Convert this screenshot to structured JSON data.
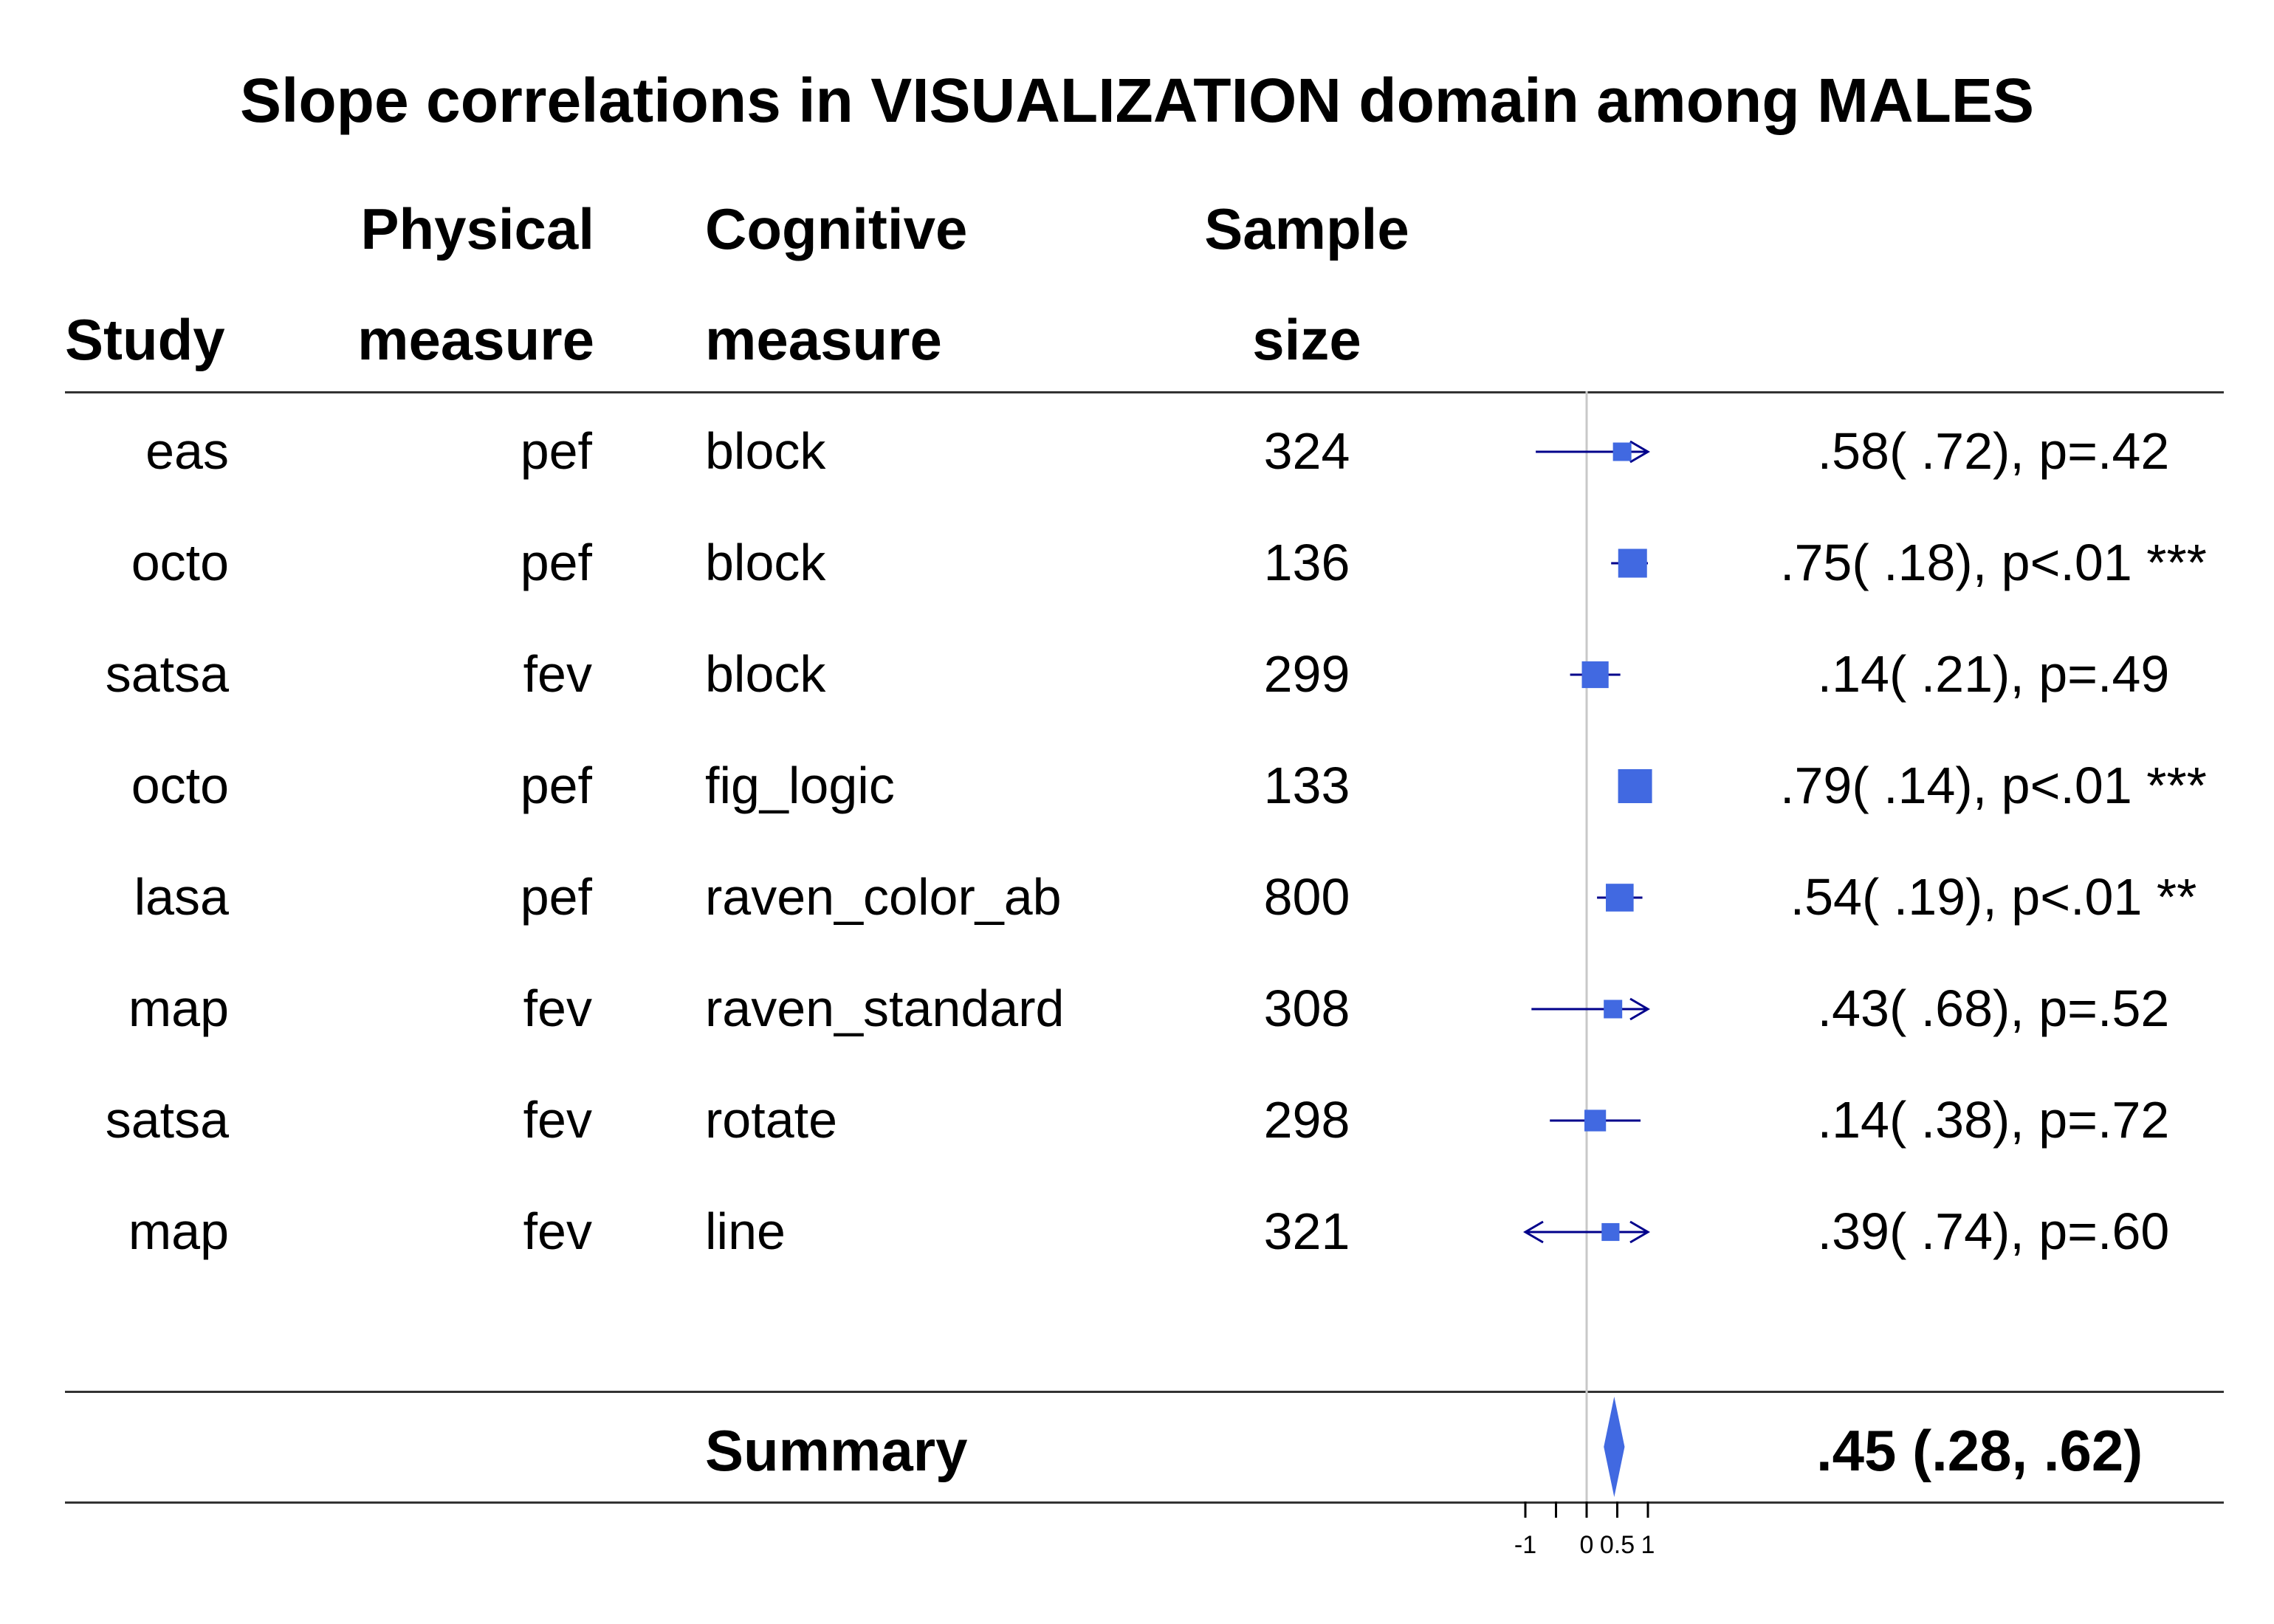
{
  "title": "Slope correlations in VISUALIZATION domain among MALES",
  "headers": {
    "study": "Study",
    "physical_1": "Physical",
    "physical_2": "measure",
    "cognitive_1": "Cognitive",
    "cognitive_2": "measure",
    "sample_1": "Sample",
    "sample_2": "size"
  },
  "summary": {
    "label": "Summary",
    "value": ".45 (.28, .62)"
  },
  "colors": {
    "marker": "#4169E1",
    "ci_line": "#00008B",
    "ref_line": "#C8C8C8",
    "rule": "#333333"
  },
  "chart_data": {
    "type": "forest",
    "x_axis": {
      "ticks": [
        -1,
        -0.5,
        0,
        0.5,
        1
      ],
      "tick_labels": [
        "-1",
        "",
        "0",
        "0.5",
        "1"
      ],
      "xlim": [
        -1,
        1
      ],
      "ref_line": 0
    },
    "rows": [
      {
        "study": "eas",
        "physical": "pef",
        "cognitive": "block",
        "n": "324",
        "est": 0.58,
        "lo": -0.83,
        "hi": 1.0,
        "arrow_hi": true,
        "arrow_lo": false,
        "weight": 0.25,
        "label": ".58( .72), p=.42"
      },
      {
        "study": "octo",
        "physical": "pef",
        "cognitive": "block",
        "n": "136",
        "est": 0.75,
        "lo": 0.4,
        "hi": 1.0,
        "arrow_hi": false,
        "arrow_lo": false,
        "weight": 0.75,
        "label": ".75( .18), p<.01 ***"
      },
      {
        "study": "satsa",
        "physical": "fev",
        "cognitive": "block",
        "n": "299",
        "est": 0.14,
        "lo": -0.27,
        "hi": 0.55,
        "arrow_hi": false,
        "arrow_lo": false,
        "weight": 0.65,
        "label": ".14( .21), p=.49"
      },
      {
        "study": "octo",
        "physical": "pef",
        "cognitive": "fig_logic",
        "n": "133",
        "est": 0.79,
        "lo": 0.52,
        "hi": 1.0,
        "arrow_hi": false,
        "arrow_lo": false,
        "weight": 1.0,
        "label": ".79( .14), p<.01 ***"
      },
      {
        "study": "lasa",
        "physical": "pef",
        "cognitive": "raven_color_ab",
        "n": "800",
        "est": 0.54,
        "lo": 0.17,
        "hi": 0.91,
        "arrow_hi": false,
        "arrow_lo": false,
        "weight": 0.7,
        "label": ".54( .19), p<.01 **"
      },
      {
        "study": "map",
        "physical": "fev",
        "cognitive": "raven_standard",
        "n": "308",
        "est": 0.43,
        "lo": -0.9,
        "hi": 1.0,
        "arrow_hi": true,
        "arrow_lo": false,
        "weight": 0.25,
        "label": ".43( .68), p=.52"
      },
      {
        "study": "satsa",
        "physical": "fev",
        "cognitive": "rotate",
        "n": "298",
        "est": 0.14,
        "lo": -0.6,
        "hi": 0.88,
        "arrow_hi": false,
        "arrow_lo": false,
        "weight": 0.4,
        "label": ".14( .38), p=.72"
      },
      {
        "study": "map",
        "physical": "fev",
        "cognitive": "line",
        "n": "321",
        "est": 0.39,
        "lo": -1.0,
        "hi": 1.0,
        "arrow_hi": true,
        "arrow_lo": true,
        "weight": 0.22,
        "label": ".39( .74), p=.60"
      }
    ],
    "summary": {
      "est": 0.45,
      "lo": 0.28,
      "hi": 0.62
    }
  }
}
